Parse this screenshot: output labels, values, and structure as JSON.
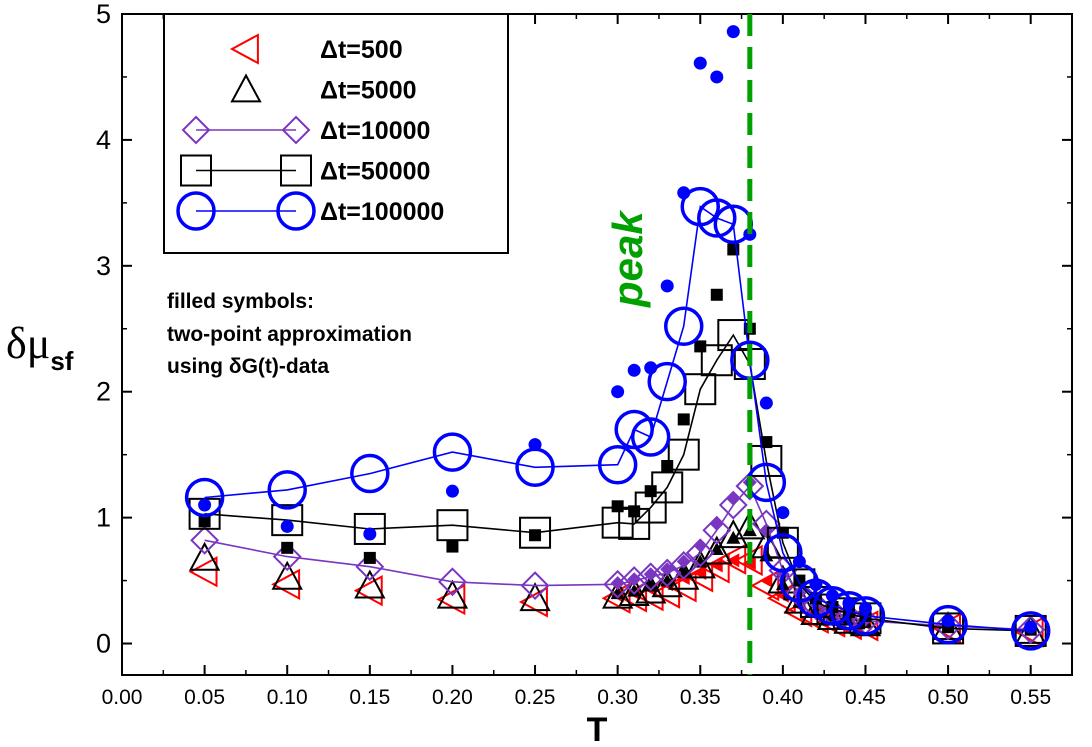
{
  "chart_data": {
    "type": "scatter",
    "xlabel": "T",
    "ylabel_main": "δμ",
    "ylabel_sub": "sf",
    "xlim": [
      0.0,
      0.575
    ],
    "ylim": [
      -0.25,
      5.0
    ],
    "xticks": [
      "0.00",
      "0.05",
      "0.10",
      "0.15",
      "0.20",
      "0.25",
      "0.30",
      "0.35",
      "0.40",
      "0.45",
      "0.50",
      "0.55"
    ],
    "yticks": [
      "0",
      "1",
      "2",
      "3",
      "4",
      "5"
    ],
    "peak_line_x": 0.38,
    "peak_label": "peak",
    "annotation": [
      "filled symbols:",
      "two-point approximation",
      "using δG(t)-data"
    ],
    "colors": {
      "red": "#ff0000",
      "black": "#000000",
      "purple": "#7a35c1",
      "blue": "#0000ff",
      "green": "#00a000"
    },
    "series": [
      {
        "name": "Δt=500",
        "marker": "triangle-left",
        "color": "#ff0000",
        "line": false,
        "x": [
          0.05,
          0.1,
          0.15,
          0.2,
          0.25,
          0.3,
          0.31,
          0.32,
          0.33,
          0.34,
          0.35,
          0.36,
          0.37,
          0.38,
          0.39,
          0.4,
          0.41,
          0.42,
          0.43,
          0.44,
          0.45,
          0.5,
          0.55
        ],
        "y": [
          0.57,
          0.47,
          0.42,
          0.35,
          0.33,
          0.36,
          0.37,
          0.38,
          0.4,
          0.45,
          0.53,
          0.6,
          0.67,
          0.66,
          0.46,
          0.36,
          0.25,
          0.2,
          0.17,
          0.15,
          0.14,
          0.12,
          0.09
        ],
        "filled_x": [
          0.3,
          0.31,
          0.32,
          0.33,
          0.34,
          0.35,
          0.36,
          0.37,
          0.38,
          0.39,
          0.4,
          0.41,
          0.42,
          0.43,
          0.44,
          0.45
        ],
        "filled_y": [
          0.38,
          0.4,
          0.43,
          0.47,
          0.52,
          0.56,
          0.62,
          0.66,
          0.64,
          0.5,
          0.38,
          0.3,
          0.24,
          0.21,
          0.18,
          0.16
        ]
      },
      {
        "name": "Δt=5000",
        "marker": "triangle-up",
        "color": "#000000",
        "line": false,
        "x": [
          0.05,
          0.1,
          0.15,
          0.2,
          0.25,
          0.3,
          0.31,
          0.32,
          0.33,
          0.34,
          0.35,
          0.36,
          0.37,
          0.38,
          0.39,
          0.4,
          0.41,
          0.42,
          0.43,
          0.44,
          0.45,
          0.5,
          0.55
        ],
        "y": [
          0.68,
          0.53,
          0.46,
          0.38,
          0.36,
          0.38,
          0.4,
          0.42,
          0.47,
          0.53,
          0.62,
          0.73,
          0.86,
          0.93,
          0.78,
          0.5,
          0.34,
          0.25,
          0.21,
          0.18,
          0.16,
          0.13,
          0.1
        ],
        "filled_x": [
          0.3,
          0.31,
          0.32,
          0.33,
          0.34,
          0.35,
          0.36,
          0.37,
          0.38,
          0.39,
          0.4,
          0.41,
          0.42,
          0.43,
          0.44,
          0.45
        ],
        "filled_y": [
          0.4,
          0.42,
          0.46,
          0.5,
          0.57,
          0.65,
          0.75,
          0.84,
          0.9,
          0.7,
          0.47,
          0.33,
          0.26,
          0.22,
          0.19,
          0.17
        ]
      },
      {
        "name": "Δt=10000",
        "marker": "diamond",
        "color": "#7a35c1",
        "line": true,
        "x": [
          0.05,
          0.1,
          0.15,
          0.2,
          0.25,
          0.3,
          0.31,
          0.32,
          0.33,
          0.34,
          0.35,
          0.36,
          0.37,
          0.38,
          0.39,
          0.4,
          0.41,
          0.42,
          0.43,
          0.44,
          0.45,
          0.5,
          0.55
        ],
        "y": [
          0.82,
          0.69,
          0.61,
          0.49,
          0.46,
          0.47,
          0.5,
          0.53,
          0.56,
          0.62,
          0.72,
          0.9,
          1.1,
          1.25,
          0.95,
          0.58,
          0.4,
          0.3,
          0.25,
          0.21,
          0.18,
          0.14,
          0.11
        ],
        "filled_x": [
          0.3,
          0.31,
          0.32,
          0.33,
          0.34,
          0.35,
          0.36,
          0.37,
          0.38,
          0.39,
          0.4,
          0.41,
          0.42,
          0.43,
          0.44,
          0.45
        ],
        "filled_y": [
          0.48,
          0.51,
          0.55,
          0.59,
          0.65,
          0.78,
          0.95,
          1.15,
          1.28,
          0.9,
          0.55,
          0.4,
          0.31,
          0.26,
          0.22,
          0.19
        ]
      },
      {
        "name": "Δt=50000",
        "marker": "square",
        "color": "#000000",
        "line": true,
        "x": [
          0.05,
          0.1,
          0.15,
          0.2,
          0.25,
          0.3,
          0.31,
          0.32,
          0.33,
          0.34,
          0.35,
          0.36,
          0.37,
          0.38,
          0.39,
          0.4,
          0.41,
          0.42,
          0.43,
          0.44,
          0.45,
          0.5,
          0.55
        ],
        "y": [
          1.03,
          0.98,
          0.91,
          0.94,
          0.88,
          0.96,
          0.95,
          1.08,
          1.24,
          1.5,
          2.02,
          2.25,
          2.45,
          2.22,
          1.45,
          0.8,
          0.47,
          0.33,
          0.27,
          0.24,
          0.2,
          0.12,
          0.1
        ],
        "filled_x": [
          0.05,
          0.1,
          0.15,
          0.2,
          0.25,
          0.3,
          0.31,
          0.32,
          0.33,
          0.34,
          0.35,
          0.36,
          0.37,
          0.38,
          0.39,
          0.4,
          0.41,
          0.42,
          0.43,
          0.44,
          0.45,
          0.5,
          0.55
        ],
        "filled_y": [
          0.97,
          0.76,
          0.68,
          0.77,
          0.86,
          1.09,
          1.05,
          1.21,
          1.41,
          1.78,
          2.36,
          2.77,
          3.13,
          2.5,
          1.6,
          0.88,
          0.5,
          0.36,
          0.29,
          0.25,
          0.22,
          0.13,
          0.11
        ]
      },
      {
        "name": "Δt=100000",
        "marker": "circle",
        "color": "#0000ff",
        "line": true,
        "x": [
          0.05,
          0.1,
          0.15,
          0.2,
          0.25,
          0.3,
          0.31,
          0.32,
          0.33,
          0.34,
          0.35,
          0.36,
          0.37,
          0.38,
          0.39,
          0.4,
          0.41,
          0.42,
          0.43,
          0.44,
          0.45,
          0.5,
          0.55
        ],
        "y": [
          1.16,
          1.22,
          1.35,
          1.52,
          1.4,
          1.42,
          1.7,
          1.64,
          2.08,
          2.52,
          3.47,
          3.38,
          3.33,
          2.25,
          1.28,
          0.72,
          0.48,
          0.36,
          0.3,
          0.26,
          0.22,
          0.15,
          0.1
        ],
        "filled_x": [
          0.05,
          0.1,
          0.15,
          0.2,
          0.25,
          0.3,
          0.31,
          0.32,
          0.33,
          0.34,
          0.35,
          0.36,
          0.37,
          0.38,
          0.39,
          0.4,
          0.41,
          0.42,
          0.43,
          0.44,
          0.45,
          0.5,
          0.55
        ],
        "filled_y": [
          1.1,
          0.93,
          0.87,
          1.21,
          1.58,
          2.0,
          2.17,
          2.19,
          2.84,
          3.58,
          4.61,
          4.5,
          4.86,
          3.25,
          1.91,
          1.04,
          0.65,
          0.47,
          0.38,
          0.32,
          0.28,
          0.18,
          0.13
        ]
      }
    ]
  }
}
